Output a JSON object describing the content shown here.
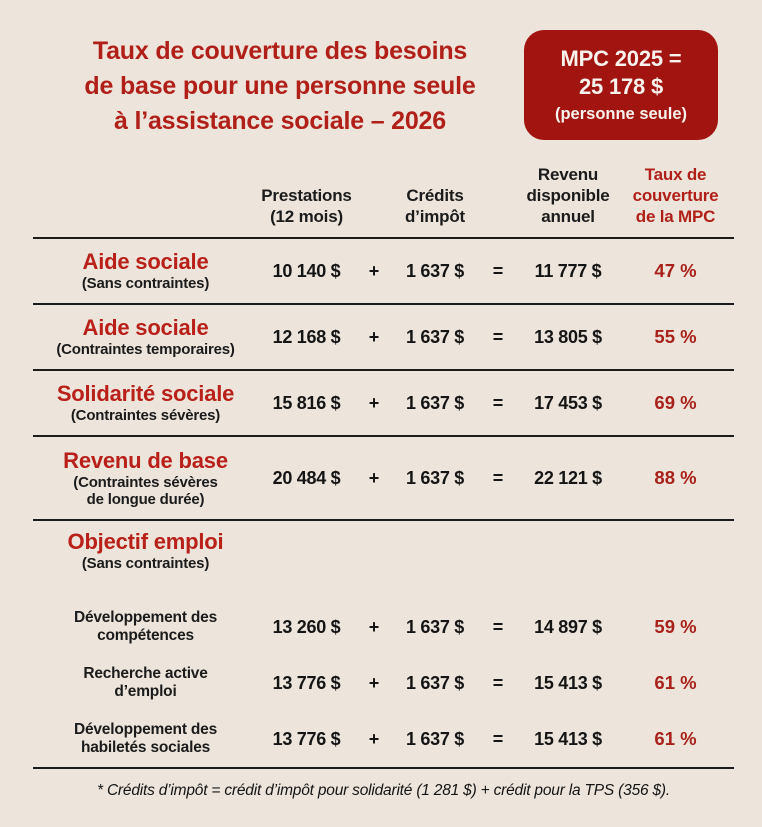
{
  "title": "Taux de couverture des besoins\nde base pour une personne seule\nà l’assistance sociale – 2026",
  "badge": {
    "line1": "MPC 2025 =",
    "line2": "25 178 $",
    "line3": "(personne seule)"
  },
  "table": {
    "headers": {
      "prestations": "Prestations\n(12 mois)",
      "credits": "Crédits\nd’impôt",
      "revenu": "Revenu\ndisponible\nannuel",
      "taux": "Taux de\ncouverture\nde la MPC"
    },
    "operators": {
      "plus": "+",
      "equals": "="
    },
    "rows": [
      {
        "program": "Aide sociale",
        "note": "(Sans contraintes)",
        "prestations": "10 140 $",
        "credits": "1 637 $",
        "revenu": "11 777 $",
        "taux": "47 %"
      },
      {
        "program": "Aide sociale",
        "note": "(Contraintes temporaires)",
        "prestations": "12 168 $",
        "credits": "1 637 $",
        "revenu": "13 805 $",
        "taux": "55 %"
      },
      {
        "program": "Solidarité sociale",
        "note": "(Contraintes sévères)",
        "prestations": "15 816 $",
        "credits": "1 637 $",
        "revenu": "17 453 $",
        "taux": "69 %"
      },
      {
        "program": "Revenu de base",
        "note": "(Contraintes sévères\nde longue durée)",
        "prestations": "20 484 $",
        "credits": "1 637 $",
        "revenu": "22 121 $",
        "taux": "88 %"
      }
    ],
    "section": {
      "program": "Objectif emploi",
      "note": "(Sans contraintes)"
    },
    "subrows": [
      {
        "label": "Développement des\ncompétences",
        "prestations": "13 260 $",
        "credits": "1 637 $",
        "revenu": "14 897 $",
        "taux": "59 %"
      },
      {
        "label": "Recherche active\nd’emploi",
        "prestations": "13 776 $",
        "credits": "1 637 $",
        "revenu": "15 413 $",
        "taux": "61 %"
      },
      {
        "label": "Développement des\nhabiletés sociales",
        "prestations": "13 776 $",
        "credits": "1 637 $",
        "revenu": "15 413 $",
        "taux": "61 %"
      }
    ]
  },
  "footnote": "* Crédits d’impôt = crédit d’impôt pour solidarité (1 281 $) + crédit pour la TPS (356 $).",
  "colors": {
    "background": "#EDE5DC",
    "text_red": "#B01F18",
    "badge_red": "#A21410",
    "text_black": "#1B1B1B",
    "badge_text": "#F8F3EC"
  },
  "chart_data": {
    "type": "table",
    "title": "Taux de couverture des besoins de base pour une personne seule à l’assistance sociale – 2026",
    "mpc_2025_personne_seule": 25178,
    "columns": [
      "Prestations (12 mois)",
      "Crédits d’impôt",
      "Revenu disponible annuel",
      "Taux de couverture de la MPC"
    ],
    "rows": [
      {
        "programme": "Aide sociale (Sans contraintes)",
        "prestations": 10140,
        "credits_impot": 1637,
        "revenu_disponible": 11777,
        "taux_couverture_pct": 47
      },
      {
        "programme": "Aide sociale (Contraintes temporaires)",
        "prestations": 12168,
        "credits_impot": 1637,
        "revenu_disponible": 13805,
        "taux_couverture_pct": 55
      },
      {
        "programme": "Solidarité sociale (Contraintes sévères)",
        "prestations": 15816,
        "credits_impot": 1637,
        "revenu_disponible": 17453,
        "taux_couverture_pct": 69
      },
      {
        "programme": "Revenu de base (Contraintes sévères de longue durée)",
        "prestations": 20484,
        "credits_impot": 1637,
        "revenu_disponible": 22121,
        "taux_couverture_pct": 88
      },
      {
        "programme": "Objectif emploi (Sans contraintes) — Développement des compétences",
        "prestations": 13260,
        "credits_impot": 1637,
        "revenu_disponible": 14897,
        "taux_couverture_pct": 59
      },
      {
        "programme": "Objectif emploi (Sans contraintes) — Recherche active d’emploi",
        "prestations": 13776,
        "credits_impot": 1637,
        "revenu_disponible": 15413,
        "taux_couverture_pct": 61
      },
      {
        "programme": "Objectif emploi (Sans contraintes) — Développement des habiletés sociales",
        "prestations": 13776,
        "credits_impot": 1637,
        "revenu_disponible": 15413,
        "taux_couverture_pct": 61
      }
    ],
    "footnote_values": {
      "credit_solidarite": 1281,
      "credit_tps": 356
    }
  }
}
